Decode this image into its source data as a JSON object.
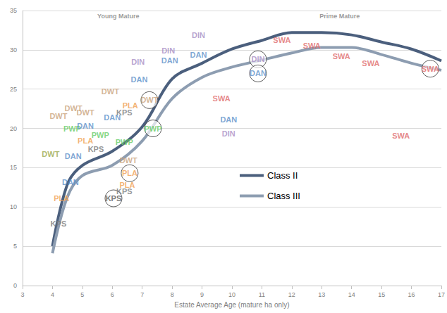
{
  "chart_data": {
    "type": "line",
    "x_label": "Estate Average Age (mature ha only)",
    "xlim": [
      3,
      17
    ],
    "xticks": [
      3,
      4,
      5,
      6,
      7,
      8,
      9,
      10,
      11,
      12,
      13,
      14,
      15,
      16,
      17
    ],
    "ylim": [
      0,
      35
    ],
    "yticks": [
      0,
      5,
      10,
      15,
      20,
      25,
      30,
      35
    ],
    "grid": true,
    "legend": "center",
    "x": [
      4,
      4.5,
      5,
      6,
      7,
      8,
      9,
      10,
      11,
      12,
      13,
      14,
      15,
      16,
      17
    ],
    "series": [
      {
        "name": "Class II",
        "color": "#4b5f7d",
        "values": [
          5,
          12.9,
          15.3,
          17.1,
          20.2,
          26.3,
          28.3,
          30.1,
          31.2,
          32.2,
          32.2,
          31.9,
          31.0,
          30.1,
          28.6
        ]
      },
      {
        "name": "Class III",
        "color": "#8d9db1",
        "values": [
          4.1,
          11.3,
          14.0,
          15.3,
          18.4,
          23.8,
          26.5,
          27.8,
          28.7,
          29.6,
          30.3,
          30.3,
          29.4,
          28.3,
          27.4
        ]
      }
    ],
    "annotations": [
      {
        "text": "Young Mature",
        "x": 6.2,
        "y": 34.3
      },
      {
        "text": "Prime Mature",
        "x": 13.6,
        "y": 34.3
      }
    ],
    "points": [
      {
        "text": "KPS",
        "x": 4.2,
        "y": 7.9,
        "color": "#7a7a7a"
      },
      {
        "text": "DWT",
        "x": 4.2,
        "y": 21.6,
        "color": "#c9a27c"
      },
      {
        "text": "DWT",
        "x": 3.94,
        "y": 16.7,
        "color": "#9aa84a"
      },
      {
        "text": "PWP",
        "x": 4.66,
        "y": 20.0,
        "color": "#66cc66"
      },
      {
        "text": "DWT",
        "x": 4.7,
        "y": 22.6,
        "color": "#c9a27c"
      },
      {
        "text": "DWT",
        "x": 5.1,
        "y": 22.0,
        "color": "#c9a27c"
      },
      {
        "text": "DAN",
        "x": 5.1,
        "y": 20.3,
        "color": "#5b8fc9"
      },
      {
        "text": "PWP",
        "x": 5.6,
        "y": 19.2,
        "color": "#66cc66"
      },
      {
        "text": "DAN",
        "x": 4.69,
        "y": 16.5,
        "color": "#5b8fc9"
      },
      {
        "text": "PLA",
        "x": 5.1,
        "y": 18.4,
        "color": "#f0a050"
      },
      {
        "text": "KPS",
        "x": 5.45,
        "y": 17.4,
        "color": "#7a7a7a"
      },
      {
        "text": "DAN",
        "x": 4.6,
        "y": 13.2,
        "color": "#5b8fc9"
      },
      {
        "text": "PLA",
        "x": 4.3,
        "y": 11.1,
        "color": "#f0a050"
      },
      {
        "text": "DWT",
        "x": 5.93,
        "y": 24.7,
        "color": "#c9a27c"
      },
      {
        "text": "DAN",
        "x": 6.0,
        "y": 21.4,
        "color": "#5b8fc9"
      },
      {
        "text": "KPS",
        "x": 6.4,
        "y": 22.0,
        "color": "#7a7a7a"
      },
      {
        "text": "PLA",
        "x": 6.6,
        "y": 22.9,
        "color": "#f0a050"
      },
      {
        "text": "DIN",
        "x": 6.86,
        "y": 28.5,
        "color": "#a68cc4"
      },
      {
        "text": "DAN",
        "x": 6.9,
        "y": 26.2,
        "color": "#5b8fc9"
      },
      {
        "text": "DWT",
        "x": 7.24,
        "y": 23.6,
        "color": "#c9a27c",
        "marker": "circle"
      },
      {
        "text": "PWP",
        "x": 7.36,
        "y": 20.0,
        "color": "#66cc66",
        "marker": "circle"
      },
      {
        "text": "PWP",
        "x": 6.4,
        "y": 18.3,
        "color": "#66cc66"
      },
      {
        "text": "DWT",
        "x": 6.54,
        "y": 15.9,
        "color": "#c9a27c"
      },
      {
        "text": "PLA",
        "x": 6.58,
        "y": 14.3,
        "color": "#f0a050",
        "marker": "circle"
      },
      {
        "text": "PLA",
        "x": 6.5,
        "y": 12.8,
        "color": "#f0a050"
      },
      {
        "text": "KPS",
        "x": 6.4,
        "y": 12.0,
        "color": "#7a7a7a"
      },
      {
        "text": "KPS",
        "x": 6.04,
        "y": 11.1,
        "color": "#555555",
        "marker": "circle"
      },
      {
        "text": "DIN",
        "x": 7.87,
        "y": 29.9,
        "color": "#a68cc4"
      },
      {
        "text": "DAN",
        "x": 7.92,
        "y": 28.6,
        "color": "#5b8fc9"
      },
      {
        "text": "DIN",
        "x": 8.88,
        "y": 31.9,
        "color": "#a68cc4"
      },
      {
        "text": "DAN",
        "x": 8.88,
        "y": 29.4,
        "color": "#5b8fc9"
      },
      {
        "text": "SWA",
        "x": 9.65,
        "y": 23.8,
        "color": "#e06b6b"
      },
      {
        "text": "DAN",
        "x": 9.89,
        "y": 21.1,
        "color": "#5b8fc9"
      },
      {
        "text": "DIN",
        "x": 9.89,
        "y": 19.3,
        "color": "#a68cc4"
      },
      {
        "text": "DIN",
        "x": 10.87,
        "y": 28.8,
        "color": "#a68cc4",
        "marker": "circle"
      },
      {
        "text": "DAN",
        "x": 10.87,
        "y": 27.0,
        "color": "#5b8fc9",
        "marker": "circle"
      },
      {
        "text": "SWA",
        "x": 11.67,
        "y": 31.2,
        "color": "#e06b6b"
      },
      {
        "text": "SWA",
        "x": 12.67,
        "y": 30.5,
        "color": "#e06b6b"
      },
      {
        "text": "SWA",
        "x": 13.66,
        "y": 29.2,
        "color": "#e06b6b"
      },
      {
        "text": "SWA",
        "x": 14.64,
        "y": 28.3,
        "color": "#e06b6b"
      },
      {
        "text": "SWA",
        "x": 16.63,
        "y": 27.6,
        "color": "#e06b6b",
        "marker": "circle"
      },
      {
        "text": "SWA",
        "x": 15.65,
        "y": 19.1,
        "color": "#e06b6b"
      }
    ]
  }
}
